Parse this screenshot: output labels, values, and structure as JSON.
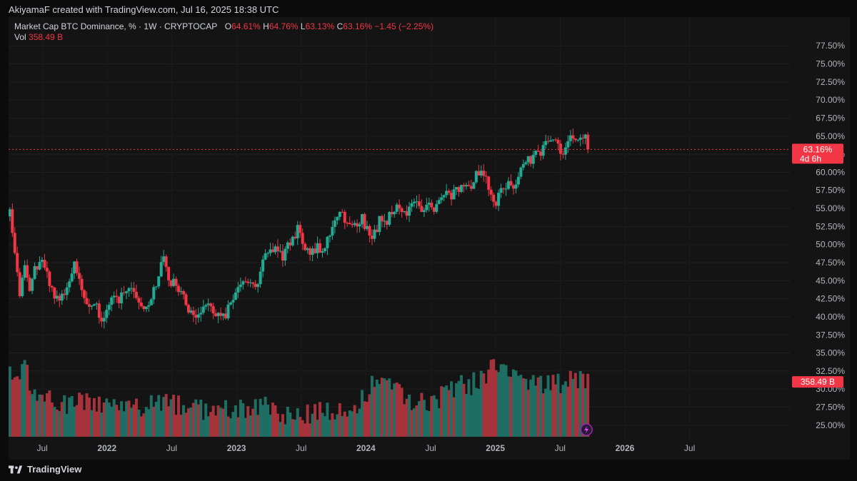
{
  "header": {
    "caption": "AkiyamaF created with TradingView.com, Jul 16, 2025 18:38 UTC"
  },
  "legend": {
    "symbol": "Market Cap BTC Dominance, % · 1W · CRYPTOCAP",
    "open_label": "O",
    "open": "64.61%",
    "high_label": "H",
    "high": "64.76%",
    "low_label": "L",
    "low": "63.13%",
    "close_label": "C",
    "close": "63.16%",
    "change": "−1.45 (−2.25%)",
    "vol_label": "Vol",
    "vol": "358.49 B"
  },
  "price_tag": {
    "value": "63.16%",
    "countdown": "4d 6h"
  },
  "volume_tag": "358.49 B",
  "footer": {
    "brand": "TradingView"
  },
  "colors": {
    "up": "#22ab94",
    "down": "#f23645",
    "vol_up": "#1e6e63",
    "vol_down": "#a6333b",
    "background": "#141414"
  },
  "chart_data": {
    "type": "candlestick",
    "interval": "1W",
    "y_ticks": [
      "77.50%",
      "75.00%",
      "72.50%",
      "70.00%",
      "67.50%",
      "65.00%",
      "62.50%",
      "60.00%",
      "57.50%",
      "55.00%",
      "52.50%",
      "50.00%",
      "47.50%",
      "45.00%",
      "42.50%",
      "40.00%",
      "37.50%",
      "35.00%",
      "32.50%",
      "30.00%",
      "27.50%",
      "25.00%"
    ],
    "y_range": [
      24.0,
      79.0
    ],
    "x_ticks": [
      {
        "label": "Jul",
        "t": 2021.5
      },
      {
        "label": "2022",
        "t": 2022.0
      },
      {
        "label": "Jul",
        "t": 2022.5
      },
      {
        "label": "2023",
        "t": 2023.0
      },
      {
        "label": "Jul",
        "t": 2023.5
      },
      {
        "label": "2024",
        "t": 2024.0
      },
      {
        "label": "Jul",
        "t": 2024.5
      },
      {
        "label": "2025",
        "t": 2025.0
      },
      {
        "label": "Jul",
        "t": 2025.5
      },
      {
        "label": "2026",
        "t": 2026.0
      },
      {
        "label": "Jul",
        "t": 2026.5
      }
    ],
    "x_range": [
      2021.24,
      2027.28
    ],
    "first_candle_t": 2021.25,
    "candle_step_t": 0.01916,
    "close_path": [
      [
        0,
        54.5
      ],
      [
        2,
        49.5
      ],
      [
        4,
        43.5
      ],
      [
        6,
        47
      ],
      [
        8,
        43
      ],
      [
        10,
        46.5
      ],
      [
        12,
        47.5
      ],
      [
        14,
        46.8
      ],
      [
        16,
        45
      ],
      [
        18,
        43
      ],
      [
        20,
        42
      ],
      [
        22,
        43.5
      ],
      [
        24,
        45.5
      ],
      [
        26,
        47
      ],
      [
        28,
        45.5
      ],
      [
        30,
        43
      ],
      [
        32,
        41.5
      ],
      [
        34,
        42
      ],
      [
        36,
        40.3
      ],
      [
        38,
        39.7
      ],
      [
        40,
        41.5
      ],
      [
        42,
        43
      ],
      [
        44,
        42.5
      ],
      [
        46,
        44
      ],
      [
        48,
        44.5
      ],
      [
        50,
        43.5
      ],
      [
        52,
        42
      ],
      [
        54,
        41.8
      ],
      [
        56,
        42.2
      ],
      [
        58,
        43.5
      ],
      [
        60,
        46
      ],
      [
        62,
        48
      ],
      [
        64,
        45
      ],
      [
        66,
        44.5
      ],
      [
        68,
        44
      ],
      [
        70,
        42.5
      ],
      [
        72,
        41
      ],
      [
        74,
        40
      ],
      [
        76,
        40.3
      ],
      [
        78,
        41.5
      ],
      [
        80,
        42.3
      ],
      [
        82,
        41
      ],
      [
        84,
        40.2
      ],
      [
        86,
        40
      ],
      [
        88,
        41
      ],
      [
        90,
        42
      ],
      [
        92,
        43.5
      ],
      [
        94,
        44.8
      ],
      [
        96,
        44.5
      ],
      [
        98,
        44.2
      ],
      [
        100,
        45
      ],
      [
        102,
        47.5
      ],
      [
        104,
        48.5
      ],
      [
        106,
        49.3
      ],
      [
        108,
        48.8
      ],
      [
        110,
        48.2
      ],
      [
        112,
        49.5
      ],
      [
        114,
        51
      ],
      [
        116,
        52
      ],
      [
        118,
        50.5
      ],
      [
        120,
        49.5
      ],
      [
        122,
        49
      ],
      [
        124,
        49.5
      ],
      [
        126,
        49.8
      ],
      [
        128,
        50.5
      ],
      [
        130,
        52
      ],
      [
        132,
        54
      ],
      [
        134,
        54.5
      ],
      [
        136,
        53
      ],
      [
        138,
        52.8
      ],
      [
        140,
        52.5
      ],
      [
        142,
        53.5
      ],
      [
        144,
        52
      ],
      [
        146,
        51.5
      ],
      [
        148,
        52.5
      ],
      [
        150,
        54
      ],
      [
        152,
        53.5
      ],
      [
        154,
        54
      ],
      [
        156,
        55.5
      ],
      [
        158,
        55
      ],
      [
        160,
        54.5
      ],
      [
        162,
        55.5
      ],
      [
        164,
        56.5
      ],
      [
        166,
        55
      ],
      [
        168,
        55.3
      ],
      [
        170,
        54.8
      ],
      [
        172,
        55.5
      ],
      [
        174,
        56.5
      ],
      [
        176,
        57.5
      ],
      [
        178,
        57
      ],
      [
        180,
        57.5
      ],
      [
        182,
        58
      ],
      [
        184,
        57.8
      ],
      [
        186,
        58.5
      ],
      [
        188,
        60
      ],
      [
        190,
        60.5
      ],
      [
        192,
        59
      ],
      [
        194,
        56.5
      ],
      [
        196,
        55.5
      ],
      [
        198,
        57.5
      ],
      [
        200,
        58.5
      ],
      [
        202,
        58
      ],
      [
        204,
        59
      ],
      [
        206,
        61
      ],
      [
        208,
        62
      ],
      [
        210,
        61.5
      ],
      [
        212,
        62.5
      ],
      [
        214,
        63
      ],
      [
        216,
        63.8
      ],
      [
        218,
        64.5
      ],
      [
        220,
        64
      ],
      [
        222,
        62.8
      ],
      [
        224,
        63.5
      ],
      [
        226,
        64.5
      ],
      [
        228,
        64.8
      ],
      [
        230,
        65.5
      ],
      [
        232,
        64.6
      ],
      [
        233,
        63.16
      ]
    ],
    "volume_profile": [
      [
        0,
        32.5
      ],
      [
        4,
        30
      ],
      [
        6,
        34.8
      ],
      [
        8,
        29
      ],
      [
        12,
        28.5
      ],
      [
        20,
        28
      ],
      [
        30,
        28
      ],
      [
        50,
        27.5
      ],
      [
        60,
        28
      ],
      [
        70,
        27.5
      ],
      [
        80,
        27
      ],
      [
        90,
        27
      ],
      [
        100,
        27.5
      ],
      [
        110,
        26.5
      ],
      [
        120,
        26.5
      ],
      [
        130,
        27
      ],
      [
        140,
        27.5
      ],
      [
        145,
        30
      ],
      [
        150,
        30.5
      ],
      [
        160,
        28.5
      ],
      [
        170,
        28
      ],
      [
        180,
        30
      ],
      [
        190,
        31
      ],
      [
        195,
        34
      ],
      [
        200,
        33
      ],
      [
        205,
        31.5
      ],
      [
        210,
        30.5
      ],
      [
        215,
        30
      ],
      [
        220,
        30.5
      ],
      [
        225,
        31
      ],
      [
        230,
        31
      ],
      [
        233,
        31.8
      ]
    ],
    "last_close": 63.16,
    "last_volume": "358.49 B"
  }
}
